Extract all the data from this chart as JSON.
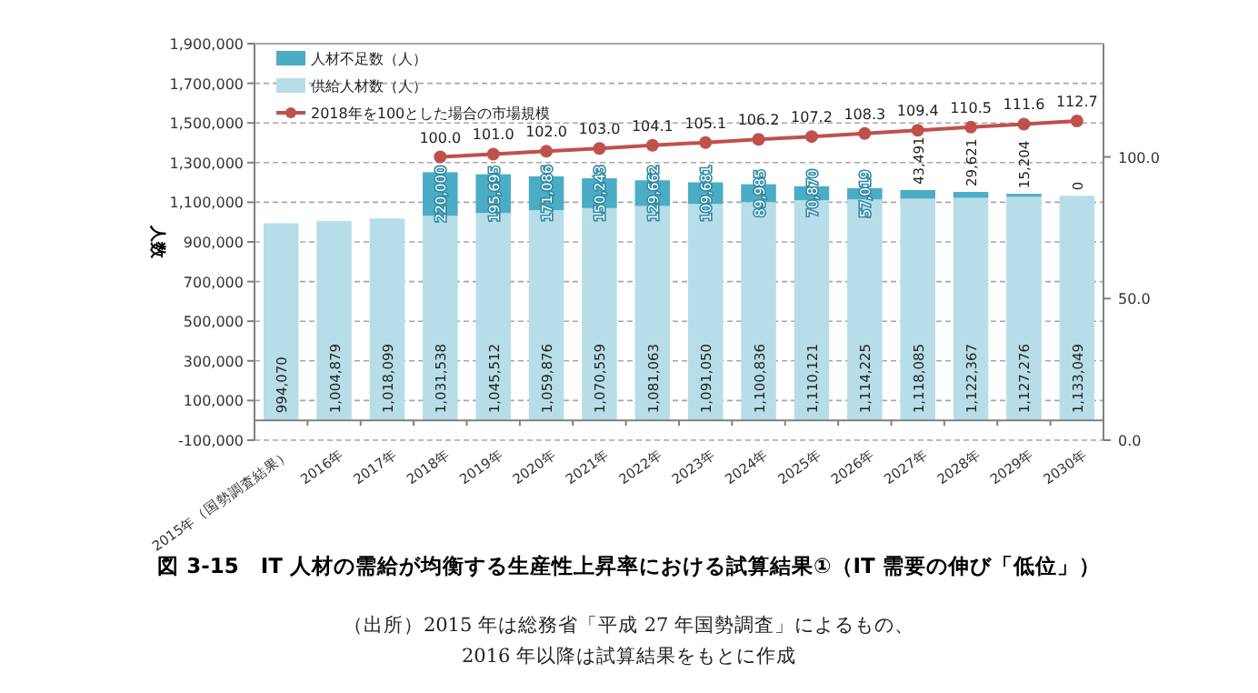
{
  "chart_data": {
    "type": "bar",
    "stacked": true,
    "title": "図 3-15　IT 人材の需給が均衡する生産性上昇率における試算結果①（IT 需要の伸び「低位」）",
    "ylabel": "人数",
    "annotations": [
      "（出所）2015 年は総務省「平成 27 年国勢調査」によるもの、",
      "2016 年以降は試算結果をもとに作成"
    ],
    "categories": [
      "2015年（国勢調査結果）",
      "2016年",
      "2017年",
      "2018年",
      "2019年",
      "2020年",
      "2021年",
      "2022年",
      "2023年",
      "2024年",
      "2025年",
      "2026年",
      "2027年",
      "2028年",
      "2029年",
      "2030年"
    ],
    "series": [
      {
        "name": "供給人材数（人）",
        "color": "#b7dde8",
        "values": [
          994070,
          1004879,
          1018099,
          1031538,
          1045512,
          1059876,
          1070559,
          1081063,
          1091050,
          1100836,
          1110121,
          1114225,
          1118085,
          1122367,
          1127276,
          1133049
        ],
        "value_labels": [
          "994,070",
          "1,004,879",
          "1,018,099",
          "1,031,538",
          "1,045,512",
          "1,059,876",
          "1,070,559",
          "1,081,063",
          "1,091,050",
          "1,100,836",
          "1,110,121",
          "1,114,225",
          "1,118,085",
          "1,122,367",
          "1,127,276",
          "1,133,049"
        ]
      },
      {
        "name": "人材不足数（人）",
        "color": "#4bacc6",
        "values": [
          null,
          null,
          null,
          220000,
          195695,
          171086,
          150243,
          129662,
          109681,
          89985,
          70870,
          57019,
          43491,
          29621,
          15204,
          0
        ],
        "value_labels": [
          null,
          null,
          null,
          "220,000",
          "195,695",
          "171,086",
          "150,243",
          "129,662",
          "109,681",
          "89,985",
          "70,870",
          "57,019",
          "43,491",
          "29,621",
          "15,204",
          "0"
        ]
      },
      {
        "name": "2018年を100とした場合の市場規模",
        "type": "line",
        "axis": "y2",
        "marker": "circle",
        "color": "#c0504d",
        "values": [
          null,
          null,
          null,
          100.0,
          101.0,
          102.0,
          103.0,
          104.1,
          105.1,
          106.2,
          107.2,
          108.3,
          109.4,
          110.5,
          111.6,
          112.7
        ],
        "value_labels": [
          null,
          null,
          null,
          "100.0",
          "101.0",
          "102.0",
          "103.0",
          "104.1",
          "105.1",
          "106.2",
          "107.2",
          "108.3",
          "109.4",
          "110.5",
          "111.6",
          "112.7"
        ]
      }
    ],
    "ylim": [
      -100000,
      1900000
    ],
    "yticks": [
      {
        "value": -100000,
        "label": "-100,000"
      },
      {
        "value": 100000,
        "label": "100,000"
      },
      {
        "value": 300000,
        "label": "300,000"
      },
      {
        "value": 500000,
        "label": "500,000"
      },
      {
        "value": 700000,
        "label": "700,000"
      },
      {
        "value": 900000,
        "label": "900,000"
      },
      {
        "value": 1100000,
        "label": "1,100,000"
      },
      {
        "value": 1300000,
        "label": "1,300,000"
      },
      {
        "value": 1500000,
        "label": "1,500,000"
      },
      {
        "value": 1700000,
        "label": "1,700,000"
      },
      {
        "value": 1900000,
        "label": "1,900,000"
      }
    ],
    "y2lim": [
      0,
      140
    ],
    "y2ticks": [
      {
        "value": 0,
        "label": "0.0"
      },
      {
        "value": 50,
        "label": "50.0"
      },
      {
        "value": 100,
        "label": "100.0"
      }
    ],
    "grid": "y",
    "legend": "top left"
  }
}
